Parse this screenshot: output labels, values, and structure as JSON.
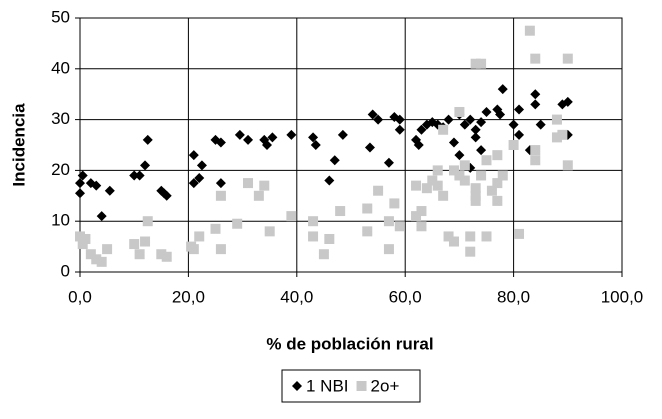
{
  "chart_data": {
    "type": "scatter",
    "x_label": "% de población rural",
    "y_label": "Incidencia",
    "xlim": [
      0,
      100
    ],
    "ylim": [
      0,
      50
    ],
    "xticks": [
      {
        "value": 0,
        "label": "0,0"
      },
      {
        "value": 20,
        "label": "20,0"
      },
      {
        "value": 40,
        "label": "40,0"
      },
      {
        "value": 60,
        "label": "60,0"
      },
      {
        "value": 80,
        "label": "80,0"
      },
      {
        "value": 100,
        "label": "100,0"
      }
    ],
    "yticks": [
      0,
      10,
      20,
      30,
      40,
      50
    ],
    "grid": true,
    "legend": "bottom",
    "series": [
      {
        "name": "1 NBI",
        "color": "#000000",
        "marker": "diamond",
        "x": [
          0,
          0,
          0.5,
          2,
          3,
          4,
          5.5,
          10,
          11,
          12,
          12.5,
          15,
          16,
          15.5,
          21,
          21,
          22,
          22.5,
          25,
          26,
          26,
          29.5,
          31,
          34,
          34.5,
          35.5,
          39,
          43,
          43.5,
          46,
          47,
          48.5,
          53.5,
          54,
          55,
          57,
          58,
          59,
          59,
          62,
          62.5,
          63,
          64,
          65,
          66,
          67,
          68,
          69,
          70,
          70,
          71,
          72,
          72,
          73,
          73,
          74,
          74,
          75,
          77,
          77.5,
          78,
          80,
          81,
          81,
          83,
          84,
          84,
          85,
          89,
          90,
          90
        ],
        "values": [
          15.5,
          17.5,
          19,
          17.5,
          17,
          11,
          16,
          19,
          19,
          21,
          26,
          16,
          15,
          15.5,
          17.5,
          23,
          18.5,
          21,
          26,
          25.5,
          17.5,
          27,
          26,
          26,
          25,
          26.5,
          27,
          26.5,
          25,
          18,
          22,
          27,
          24.5,
          31,
          30,
          21.5,
          30.5,
          30,
          28,
          26,
          25,
          28,
          29,
          29.5,
          29,
          28.5,
          30,
          25.5,
          23,
          31,
          29,
          30,
          20.5,
          28,
          26.5,
          29.5,
          24,
          31.5,
          32,
          31,
          36,
          29,
          32,
          27,
          24,
          35,
          33,
          29,
          33,
          33.5,
          27
        ]
      },
      {
        "name": "2o+",
        "color": "#c8c8c8",
        "marker": "square",
        "x": [
          0,
          0.5,
          1,
          2,
          3,
          4,
          5,
          10,
          11,
          12,
          12.5,
          15,
          16,
          20.5,
          21,
          22,
          25,
          26,
          26,
          29,
          31,
          33,
          34,
          35,
          39,
          43,
          43,
          45,
          46,
          48,
          53,
          53,
          55,
          57,
          57,
          58,
          59,
          62,
          62,
          63,
          63,
          64,
          65,
          66,
          66,
          67,
          67,
          68,
          69,
          69,
          70,
          70,
          71,
          71,
          72,
          72,
          73,
          73,
          73,
          73,
          74,
          74,
          75,
          75,
          76,
          77,
          77,
          77,
          78,
          80,
          81,
          83,
          84,
          84,
          84,
          88,
          88,
          89,
          90,
          90
        ],
        "values": [
          7,
          5.5,
          6.5,
          3.5,
          2.5,
          2,
          4.5,
          5.5,
          3.5,
          6,
          10,
          3.5,
          3,
          5,
          4.5,
          7,
          8.5,
          15,
          4.5,
          9.5,
          17.5,
          15,
          17,
          8,
          11,
          10,
          7,
          3.5,
          6.5,
          12,
          12.5,
          8,
          16,
          4.5,
          10,
          13.5,
          9,
          17,
          11,
          12,
          9,
          16.5,
          18,
          17,
          20,
          28,
          15,
          7,
          20,
          6,
          31.5,
          19,
          21,
          18,
          7,
          4,
          15,
          14,
          16.5,
          41,
          41,
          19,
          22,
          7,
          16,
          17.5,
          14,
          23,
          19,
          25,
          7.5,
          47.5,
          42,
          22,
          24,
          30,
          26.5,
          27,
          42,
          21
        ]
      }
    ]
  }
}
